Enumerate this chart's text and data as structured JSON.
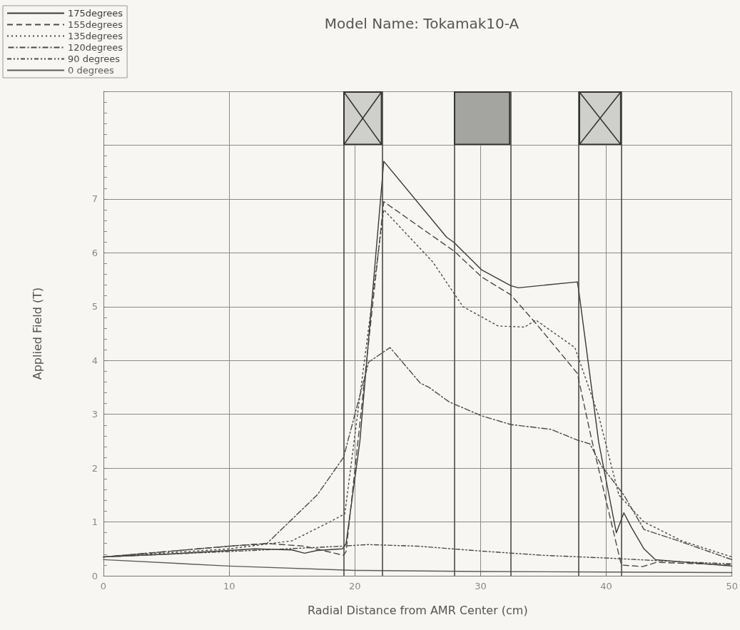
{
  "chart_data": {
    "type": "line",
    "title": "Model Name: Tokamak10-A",
    "xlabel": "Radial Distance from AMR Center (cm)",
    "ylabel": "Applied Field (T)",
    "xlim": [
      0,
      50
    ],
    "xticks": [
      0,
      10,
      20,
      30,
      40,
      50
    ],
    "ylim": [
      0,
      9
    ],
    "yticks": [
      0,
      1,
      2,
      3,
      4,
      5,
      6,
      7,
      {
        "value": 8,
        "label": null
      },
      {
        "value": 9,
        "label": null
      }
    ],
    "grid": true,
    "legend": "top left",
    "marker": "none",
    "series": [
      {
        "name": "175degrees",
        "color": "#3a3a3a",
        "line_style": "solid",
        "x": [
          0,
          5,
          10,
          12,
          15,
          16,
          17,
          19,
          19.3,
          20.4,
          22.3,
          27.3,
          27.9,
          30.1,
          32.4,
          33.0,
          37.7,
          37.8,
          39.4,
          40.8,
          41.4,
          42,
          43,
          43.9,
          50
        ],
        "values": [
          0.35,
          0.4,
          0.47,
          0.5,
          0.48,
          0.42,
          0.47,
          0.5,
          0.6,
          2.5,
          7.7,
          6.29,
          6.19,
          5.68,
          5.39,
          5.35,
          5.46,
          5.32,
          2.48,
          0.8,
          1.17,
          0.9,
          0.5,
          0.3,
          0.18
        ]
      },
      {
        "name": "155degrees",
        "color": "#4a4a4a",
        "line_style": "dashed",
        "x": [
          0,
          5,
          10,
          13,
          16,
          19.1,
          19.3,
          22.3,
          27.9,
          30.1,
          32.4,
          34.4,
          37.7,
          38.8,
          41.2,
          42.9,
          44,
          50
        ],
        "values": [
          0.35,
          0.45,
          0.55,
          0.6,
          0.55,
          0.38,
          0.45,
          6.95,
          6.03,
          5.55,
          5.22,
          4.69,
          3.76,
          2.57,
          0.2,
          0.17,
          0.25,
          0.2
        ]
      },
      {
        "name": "135degrees",
        "color": "#4a4a4a",
        "line_style": "dotted",
        "x": [
          0,
          10,
          15,
          18,
          19.2,
          22.3,
          26.2,
          28.6,
          31.4,
          33.5,
          34.4,
          37.5,
          39.4,
          41,
          43,
          46,
          50
        ],
        "values": [
          0.35,
          0.5,
          0.65,
          1.0,
          1.15,
          6.8,
          5.83,
          5.0,
          4.64,
          4.62,
          4.75,
          4.24,
          2.97,
          1.5,
          1.0,
          0.65,
          0.35
        ]
      },
      {
        "name": "120degrees",
        "color": "#4a4a4a",
        "line_style": "dashdot",
        "x": [
          0,
          10,
          13,
          17,
          19.1,
          21.1,
          22.8,
          25.2,
          25.9,
          27.5,
          30.1,
          32.4,
          35.6,
          37.7,
          38.7,
          39.6,
          41.4,
          43,
          45.6,
          50
        ],
        "values": [
          0.35,
          0.55,
          0.6,
          1.5,
          2.2,
          3.97,
          4.24,
          3.58,
          3.5,
          3.23,
          2.97,
          2.81,
          2.72,
          2.52,
          2.45,
          2.05,
          1.5,
          0.86,
          0.66,
          0.3
        ]
      },
      {
        "name": "90 degrees",
        "color": "#4a4a4a",
        "line_style": "dashdotdot",
        "x": [
          0,
          10,
          19,
          21,
          25,
          30,
          35,
          40,
          45,
          50
        ],
        "values": [
          0.35,
          0.45,
          0.55,
          0.58,
          0.55,
          0.46,
          0.38,
          0.33,
          0.27,
          0.22
        ]
      },
      {
        "name": "0 degrees",
        "color": "#5c5c5c",
        "line_style": "solid",
        "x": [
          0,
          10,
          20,
          30,
          40,
          50
        ],
        "values": [
          0.3,
          0.18,
          0.1,
          0.08,
          0.07,
          0.06
        ]
      }
    ],
    "ref_lines": [
      {
        "axis": "x",
        "value": 19.1,
        "label": null,
        "color": "#4a4a4a"
      },
      {
        "axis": "x",
        "value": 22.2,
        "label": null,
        "color": "#4a4a4a"
      },
      {
        "axis": "x",
        "value": 27.9,
        "label": null,
        "color": "#4a4a4a"
      },
      {
        "axis": "x",
        "value": 32.4,
        "label": null,
        "color": "#4a4a4a"
      },
      {
        "axis": "x",
        "value": 37.8,
        "label": null,
        "color": "#4a4a4a"
      },
      {
        "axis": "x",
        "value": 41.2,
        "label": null,
        "color": "#4a4a4a"
      }
    ]
  }
}
